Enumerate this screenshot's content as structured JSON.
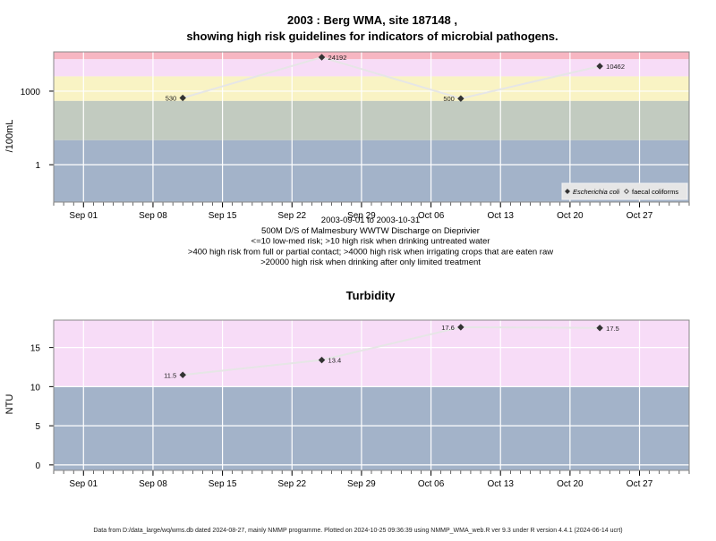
{
  "title_line1": "2003 : Berg WMA, site 187148 ,",
  "title_line2": "showing high risk guidelines for indicators of microbial pathogens.",
  "subtitle_lines": [
    "2003-09-01 to 2003-10-31",
    "500M D/S of Malmesbury WWTW Discharge on Dieprivier",
    "<=10 low-med risk; >10 high risk when drinking untreated water",
    ">400 high risk from full or partial contact; >4000 high risk when irrigating crops that are eaten raw",
    ">20000 high risk when drinking after only limited treatment"
  ],
  "footer": "Data from D:/data_large/wq/wms.db dated 2024-08-27, mainly NMMP programme. Plotted on 2024-10-25 09:36:39 using NMMP_WMA_web.R ver 9.3 under R version 4.4.1 (2024-06-14 ucrt)",
  "colors": {
    "band_red": "#f7b6c2",
    "band_pink": "#f7dcf7",
    "band_yellow": "#f9f3c4",
    "band_green": "#c2cbc0",
    "band_blue": "#a3b3c9",
    "line": "#e6e6e6",
    "marker": "#333333"
  },
  "chart_data": [
    {
      "type": "line",
      "title": "",
      "ylabel": "/100mL",
      "xlabel": "",
      "yscale": "log",
      "x_ticks": [
        "Sep 01",
        "Sep 08",
        "Sep 15",
        "Sep 22",
        "Sep 29",
        "Oct 06",
        "Oct 13",
        "Oct 20",
        "Oct 27"
      ],
      "y_ticks": [
        "1",
        "1000"
      ],
      "xlim": [
        "2003-08-29",
        "2003-11-01"
      ],
      "ylim": [
        0.03,
        40000
      ],
      "bands": [
        {
          "from": 20000,
          "to": 40000,
          "color": "band_red"
        },
        {
          "from": 4000,
          "to": 20000,
          "color": "band_pink"
        },
        {
          "from": 400,
          "to": 4000,
          "color": "band_yellow"
        },
        {
          "from": 10,
          "to": 400,
          "color": "band_green"
        },
        {
          "from": 0.03,
          "to": 10,
          "color": "band_blue"
        }
      ],
      "series": [
        {
          "name": "Escherichia coli",
          "marker": "filled-diamond",
          "x": [
            "2003-09-11",
            "2003-09-25",
            "2003-10-09",
            "2003-10-23"
          ],
          "y": [
            530,
            24192,
            500,
            10462
          ],
          "labels": [
            "530",
            "24192",
            "500",
            "10462"
          ]
        }
      ],
      "legend": {
        "position": "bottom-right",
        "items": [
          {
            "label": "Escherichia coli",
            "marker": "filled-diamond",
            "italic": true
          },
          {
            "label": "faecal coliforms",
            "marker": "open-diamond",
            "italic": false
          }
        ]
      },
      "grid": true
    },
    {
      "type": "line",
      "title": "Turbidity",
      "ylabel": "NTU",
      "xlabel": "",
      "yscale": "linear",
      "x_ticks": [
        "Sep 01",
        "Sep 08",
        "Sep 15",
        "Sep 22",
        "Sep 29",
        "Oct 06",
        "Oct 13",
        "Oct 20",
        "Oct 27"
      ],
      "y_ticks": [
        "0",
        "5",
        "10",
        "15"
      ],
      "xlim": [
        "2003-08-29",
        "2003-11-01"
      ],
      "ylim": [
        -0.7,
        18.5
      ],
      "bands": [
        {
          "from": 10,
          "to": 18.5,
          "color": "band_pink"
        },
        {
          "from": -0.7,
          "to": 10,
          "color": "band_blue"
        }
      ],
      "series": [
        {
          "name": "",
          "marker": "filled-diamond",
          "x": [
            "2003-09-11",
            "2003-09-25",
            "2003-10-09",
            "2003-10-23"
          ],
          "y": [
            11.5,
            13.4,
            17.6,
            17.5
          ],
          "labels": [
            "11.5",
            "13.4",
            "17.6",
            "17.5"
          ]
        }
      ],
      "grid": true
    }
  ]
}
